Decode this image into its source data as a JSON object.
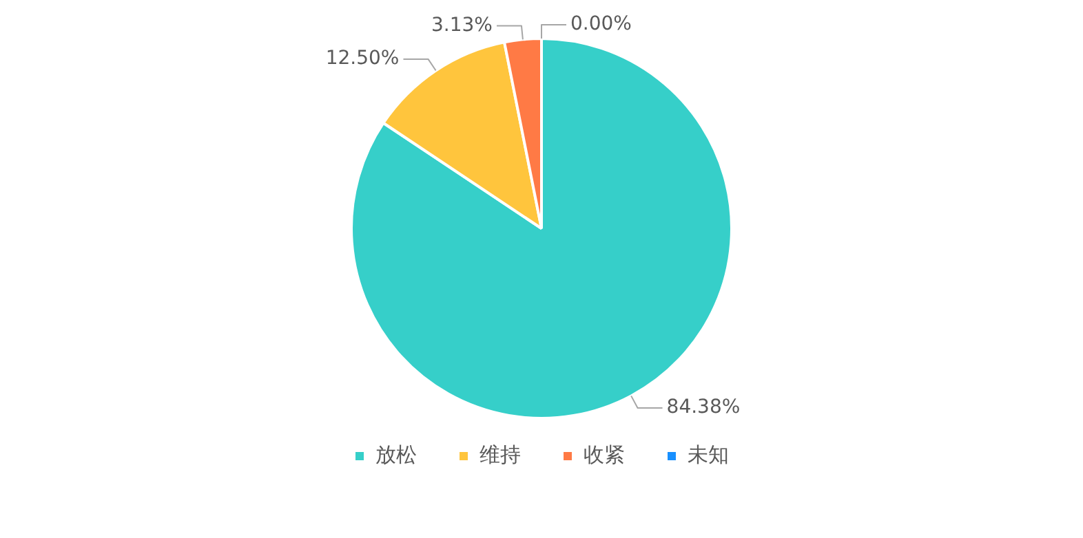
{
  "chart_data": {
    "type": "pie",
    "categories": [
      "放松",
      "维持",
      "收紧",
      "未知"
    ],
    "values": [
      84.38,
      12.5,
      3.13,
      0
    ],
    "colors": [
      "#36cfc9",
      "#ffc53d",
      "#ff7a45",
      "#1890ff"
    ],
    "value_labels": [
      "84.38%",
      "12.50%",
      "3.13%",
      "0.00%"
    ],
    "legend": "bottom"
  }
}
